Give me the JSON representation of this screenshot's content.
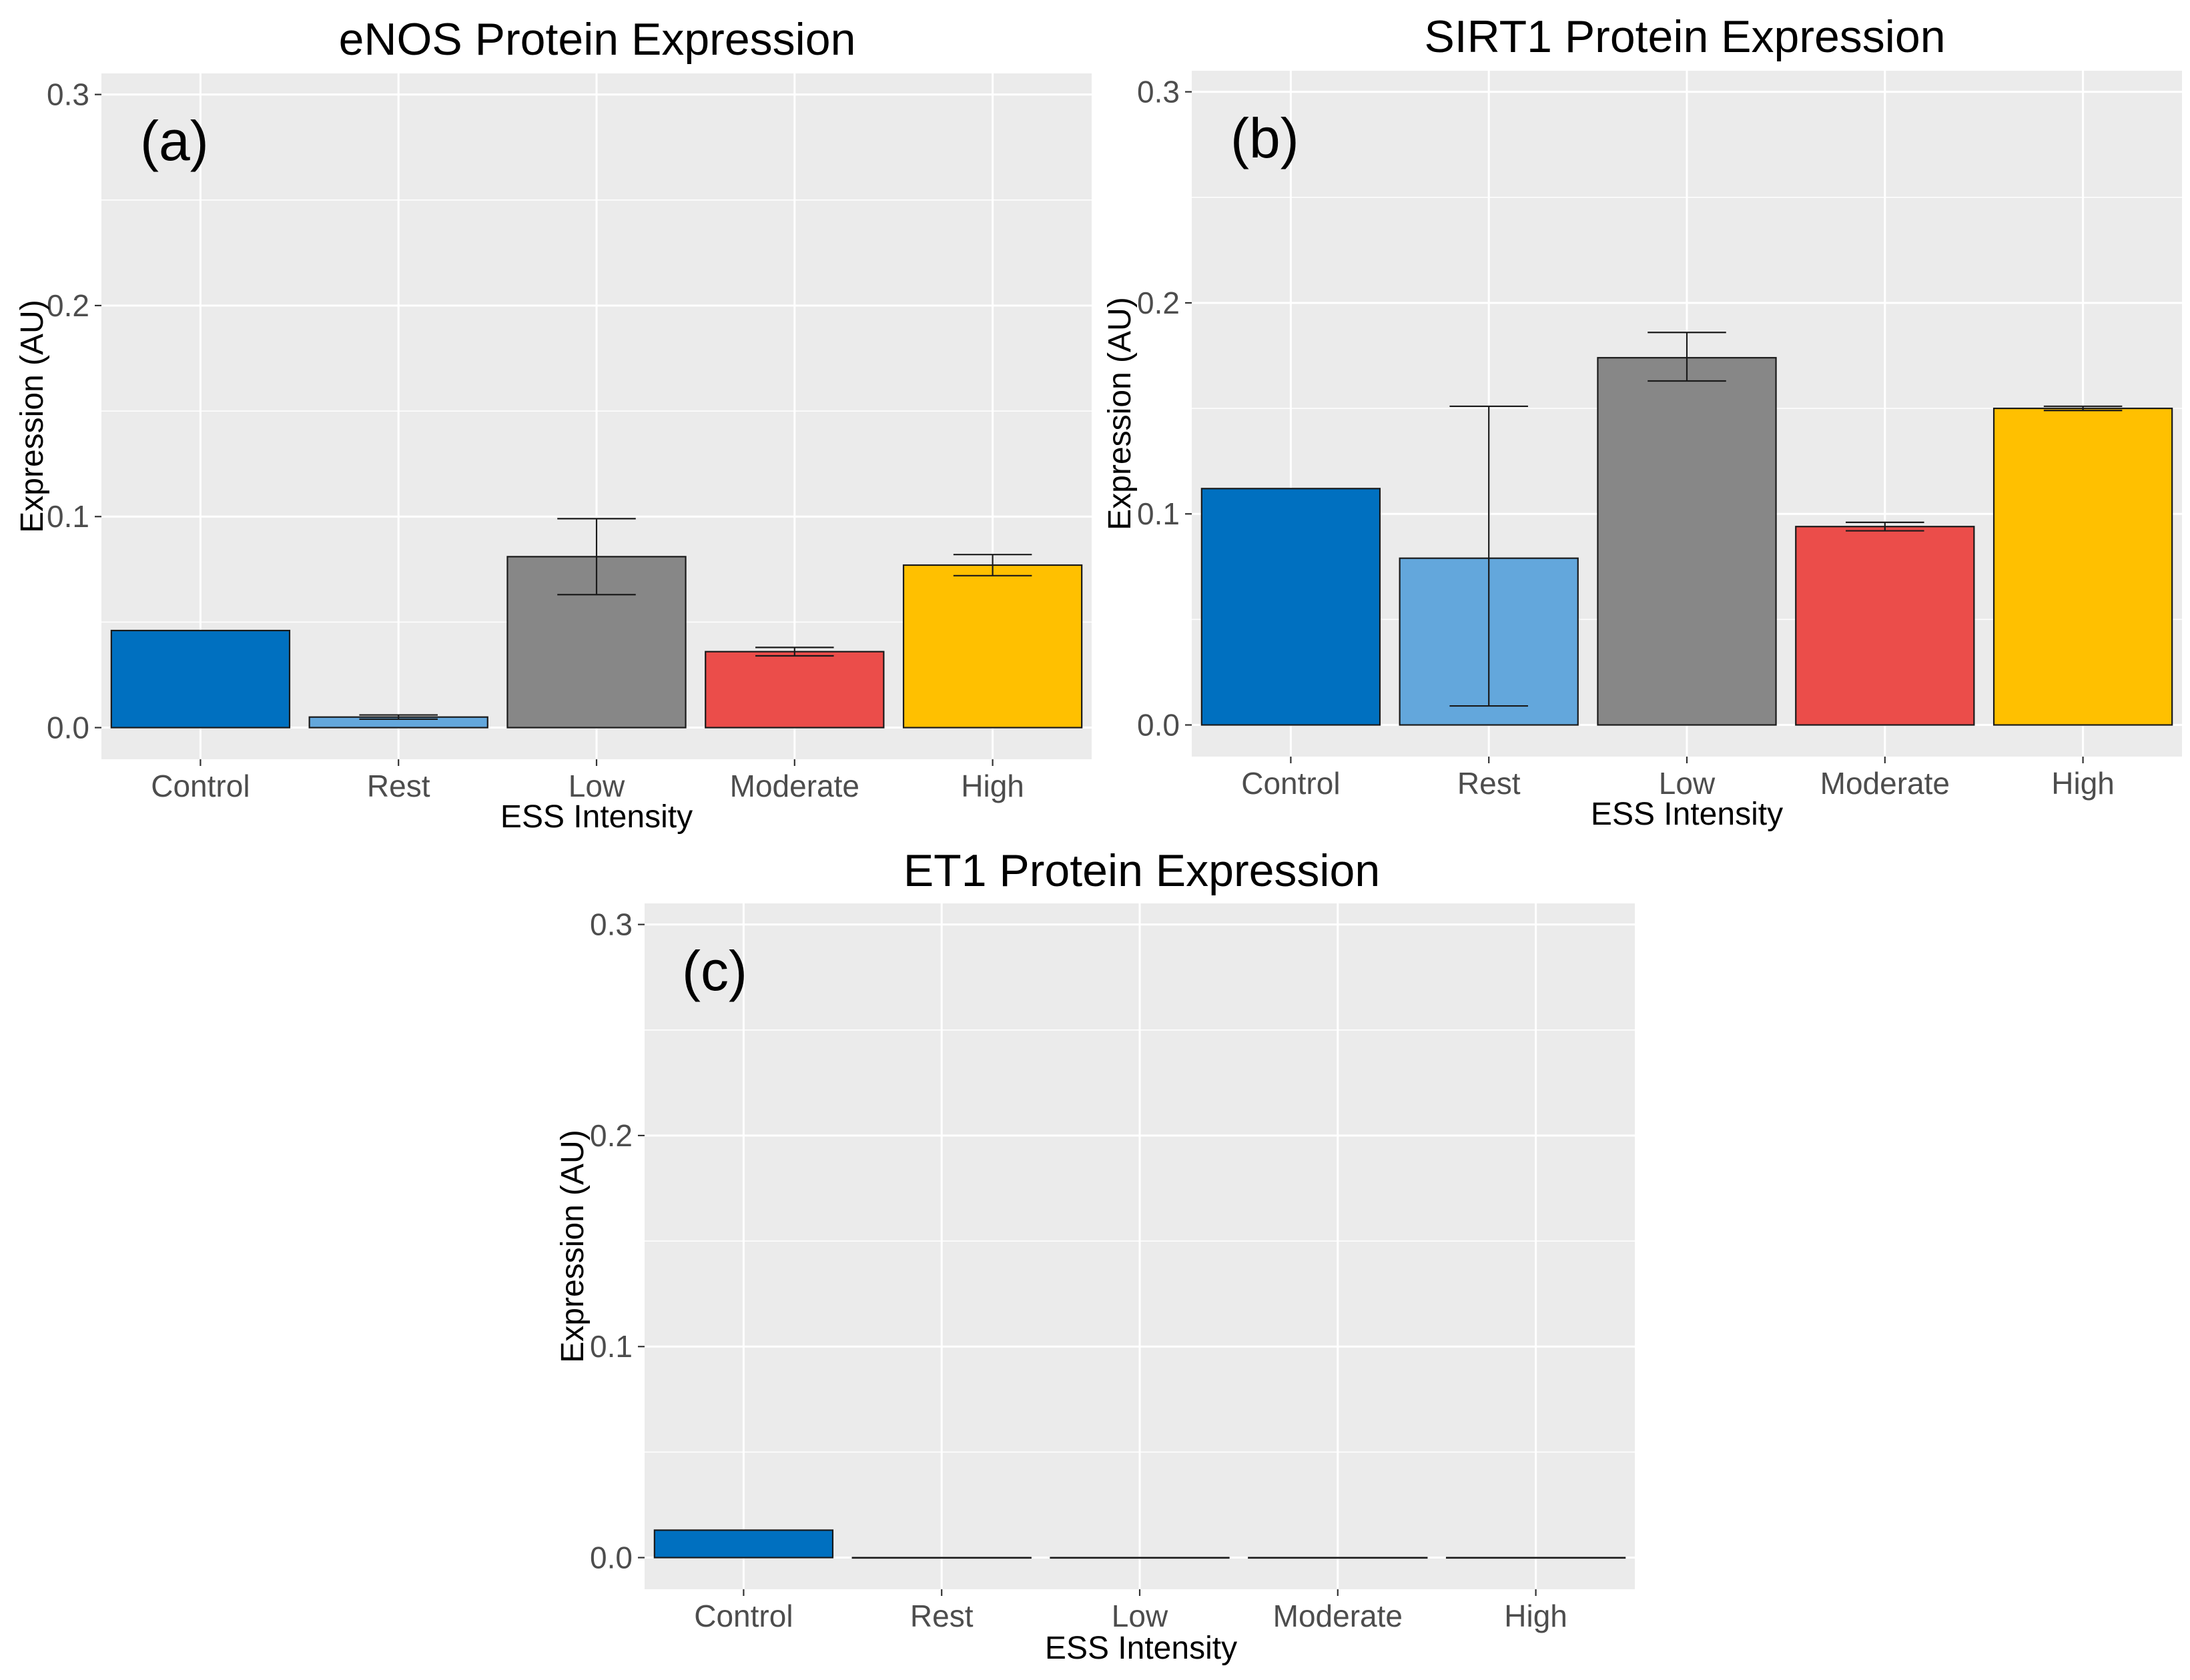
{
  "figure": {
    "colors": {
      "panel_background": "#ebebeb",
      "grid_line": "#ffffff",
      "bar_outline": "#1a1a1a",
      "error_bar": "#1a1a1a"
    }
  },
  "chart_data": [
    {
      "type": "bar",
      "panel_label": "(a)",
      "title": "eNOS Protein Expression",
      "xlabel": "ESS Intensity",
      "ylabel": "Expression (AU)",
      "ylim": [
        -0.015,
        0.31
      ],
      "yticks": [
        0.0,
        0.1,
        0.2,
        0.3
      ],
      "ytick_labels": [
        "0.0",
        "0.1",
        "0.2",
        "0.3"
      ],
      "grid": true,
      "categories": [
        "Control",
        "Rest",
        "Low",
        "Moderate",
        "High"
      ],
      "values": [
        0.046,
        0.005,
        0.081,
        0.036,
        0.077
      ],
      "error_low": [
        null,
        0.004,
        0.063,
        0.034,
        0.072
      ],
      "error_high": [
        null,
        0.006,
        0.099,
        0.038,
        0.082
      ],
      "colors": [
        "#0070c0",
        "#63a7dc",
        "#878787",
        "#eb4d4a",
        "#ffc000"
      ]
    },
    {
      "type": "bar",
      "panel_label": "(b)",
      "title": "SIRT1 Protein Expression",
      "xlabel": "ESS Intensity",
      "ylabel": "Expression (AU)",
      "ylim": [
        -0.015,
        0.31
      ],
      "yticks": [
        0.0,
        0.1,
        0.2,
        0.3
      ],
      "ytick_labels": [
        "0.0",
        "0.1",
        "0.2",
        "0.3"
      ],
      "grid": true,
      "categories": [
        "Control",
        "Rest",
        "Low",
        "Moderate",
        "High"
      ],
      "values": [
        0.112,
        0.079,
        0.174,
        0.094,
        0.15
      ],
      "error_low": [
        null,
        0.009,
        0.163,
        0.092,
        0.149
      ],
      "error_high": [
        null,
        0.151,
        0.186,
        0.096,
        0.151
      ],
      "colors": [
        "#0070c0",
        "#63a7dc",
        "#878787",
        "#eb4d4a",
        "#ffc000"
      ]
    },
    {
      "type": "bar",
      "panel_label": "(c)",
      "title": "ET1 Protein Expression",
      "xlabel": "ESS Intensity",
      "ylabel": "Expression (AU)",
      "ylim": [
        -0.015,
        0.31
      ],
      "yticks": [
        0.0,
        0.1,
        0.2,
        0.3
      ],
      "ytick_labels": [
        "0.0",
        "0.1",
        "0.2",
        "0.3"
      ],
      "grid": true,
      "categories": [
        "Control",
        "Rest",
        "Low",
        "Moderate",
        "High"
      ],
      "values": [
        0.013,
        0.0,
        0.0,
        0.0,
        0.0
      ],
      "error_low": [
        null,
        null,
        null,
        null,
        null
      ],
      "error_high": [
        null,
        null,
        null,
        null,
        null
      ],
      "colors": [
        "#0070c0",
        "#63a7dc",
        "#878787",
        "#eb4d4a",
        "#ffc000"
      ]
    }
  ]
}
